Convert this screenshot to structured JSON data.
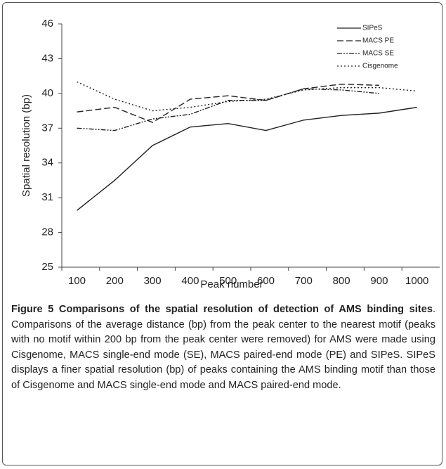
{
  "chart_data": {
    "type": "line",
    "xlabel": "Peak number",
    "ylabel": "Spatial resolution (bp)",
    "categories": [
      "100",
      "200",
      "300",
      "400",
      "500",
      "600",
      "700",
      "800",
      "900",
      "1000"
    ],
    "series": [
      {
        "name": "SIPeS",
        "color": "#222222",
        "dash": "none",
        "values": [
          29.9,
          32.5,
          35.5,
          37.1,
          37.4,
          36.8,
          37.7,
          38.1,
          38.3,
          38.8
        ]
      },
      {
        "name": "MACS PE",
        "color": "#222222",
        "dash": "9,4",
        "values": [
          38.4,
          38.8,
          37.5,
          39.5,
          39.8,
          39.4,
          40.4,
          40.8,
          40.7,
          null
        ]
      },
      {
        "name": "MACS SE",
        "color": "#222222",
        "dash": "7,2,2,2,2,2",
        "values": [
          37.0,
          36.8,
          37.8,
          38.2,
          39.4,
          39.4,
          40.4,
          40.3,
          40.0,
          null
        ]
      },
      {
        "name": "Cisgenome",
        "color": "#222222",
        "dash": "2,3",
        "values": [
          41.0,
          39.5,
          38.5,
          38.8,
          39.3,
          39.5,
          40.3,
          40.5,
          40.5,
          40.2
        ]
      }
    ],
    "ylim": [
      25,
      46
    ],
    "yticks": [
      25,
      28,
      31,
      34,
      37,
      40,
      43,
      46
    ],
    "grid": false,
    "legend": "upper right"
  },
  "caption": {
    "title": "Figure 5 Comparisons of the spatial resolution of detection of AMS binding sites",
    "body": ". Comparisons of the average distance (bp) from the peak center to the nearest motif (peaks with no motif within 200 bp from the peak center were removed) for AMS were made using Cisgenome, MACS single-end mode (SE), MACS paired-end mode (PE) and SIPeS. SIPeS displays a finer spatial resolution (bp) of peaks containing the AMS binding motif than those of Cisgenome and MACS single-end mode and MACS paired-end mode."
  }
}
